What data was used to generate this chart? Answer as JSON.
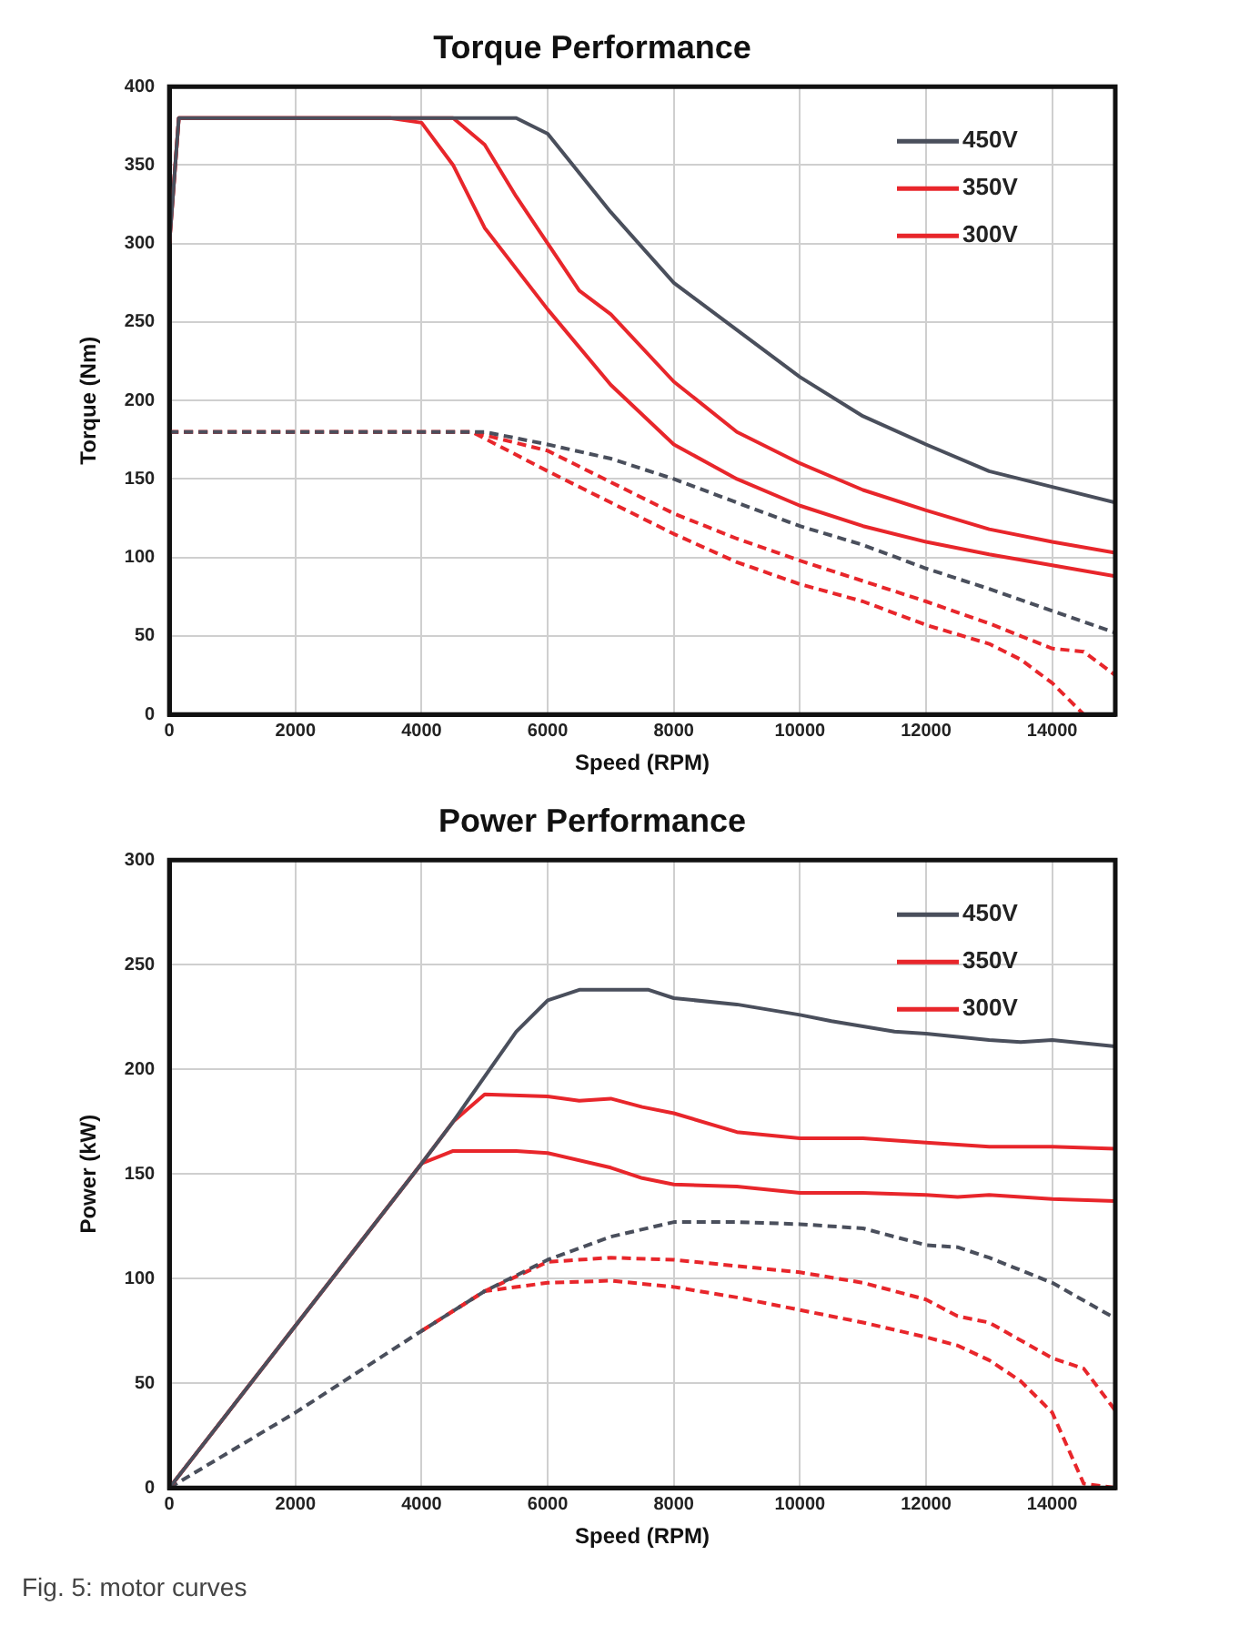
{
  "chart_data": [
    {
      "type": "line",
      "title": "Torque Performance",
      "xlabel": "Speed (RPM)",
      "ylabel": "Torque (Nm)",
      "xlim": [
        0,
        15000
      ],
      "xticks": [
        0,
        2000,
        4000,
        6000,
        8000,
        10000,
        12000,
        14000
      ],
      "ylim": [
        0,
        400
      ],
      "yticks": [
        0,
        50,
        100,
        150,
        200,
        250,
        300,
        350,
        400
      ],
      "grid": true,
      "legend": "top right",
      "series": [
        {
          "name": "450V",
          "color": "#4a4f5c",
          "line_style": "solid",
          "x": [
            0,
            150,
            5500,
            6000,
            7000,
            8000,
            9000,
            10000,
            11000,
            12000,
            13000,
            14000,
            15000
          ],
          "values": [
            300,
            380,
            380,
            370,
            320,
            275,
            245,
            215,
            190,
            172,
            155,
            145,
            135
          ]
        },
        {
          "name": "350V",
          "color": "#e8262b",
          "line_style": "solid",
          "x": [
            0,
            150,
            4500,
            5000,
            5500,
            6000,
            6500,
            7000,
            8000,
            9000,
            10000,
            11000,
            12000,
            13000,
            14000,
            15000
          ],
          "values": [
            300,
            380,
            380,
            363,
            330,
            300,
            270,
            255,
            212,
            180,
            160,
            143,
            130,
            118,
            110,
            103
          ]
        },
        {
          "name": "300V",
          "color": "#e8262b",
          "line_style": "solid",
          "x": [
            0,
            150,
            3500,
            4000,
            4500,
            5000,
            6000,
            7000,
            8000,
            9000,
            10000,
            11000,
            12000,
            13000,
            14000,
            15000
          ],
          "values": [
            300,
            380,
            380,
            377,
            350,
            310,
            258,
            210,
            172,
            150,
            133,
            120,
            110,
            102,
            95,
            88
          ]
        },
        {
          "color": "#4a4f5c",
          "line_style": "dashed",
          "x": [
            0,
            5000,
            6000,
            7000,
            8000,
            9000,
            10000,
            11000,
            12000,
            13000,
            14000,
            15000
          ],
          "values": [
            180,
            180,
            172,
            163,
            150,
            135,
            120,
            108,
            93,
            80,
            66,
            52
          ]
        },
        {
          "color": "#e8262b",
          "line_style": "dashed",
          "x": [
            0,
            4800,
            6000,
            7000,
            8000,
            9000,
            10000,
            11000,
            12000,
            13000,
            14000,
            14500,
            15000
          ],
          "values": [
            180,
            180,
            168,
            148,
            128,
            112,
            98,
            85,
            72,
            58,
            42,
            40,
            25
          ]
        },
        {
          "color": "#e8262b",
          "line_style": "dashed",
          "x": [
            0,
            4800,
            6000,
            7000,
            8000,
            9000,
            10000,
            11000,
            12000,
            13000,
            13500,
            14000,
            14500
          ],
          "values": [
            180,
            180,
            155,
            135,
            115,
            97,
            83,
            72,
            57,
            45,
            35,
            20,
            0
          ]
        }
      ]
    },
    {
      "type": "line",
      "title": "Power Performance",
      "xlabel": "Speed (RPM)",
      "ylabel": "Power (kW)",
      "xlim": [
        0,
        15000
      ],
      "xticks": [
        0,
        2000,
        4000,
        6000,
        8000,
        10000,
        12000,
        14000
      ],
      "ylim": [
        0,
        300
      ],
      "yticks": [
        0,
        50,
        100,
        150,
        200,
        250,
        300
      ],
      "grid": true,
      "legend": "top right",
      "annotations": [
        "Fig. 5: motor curves"
      ],
      "series": [
        {
          "name": "450V",
          "color": "#4a4f5c",
          "line_style": "solid",
          "x": [
            0,
            4000,
            4500,
            5500,
            6000,
            6500,
            7600,
            8000,
            9000,
            10000,
            10500,
            11500,
            12000,
            13000,
            13500,
            14000,
            15000
          ],
          "values": [
            0,
            155,
            175,
            218,
            233,
            238,
            238,
            234,
            231,
            226,
            223,
            218,
            217,
            214,
            213,
            214,
            211
          ]
        },
        {
          "name": "350V",
          "color": "#e8262b",
          "line_style": "solid",
          "x": [
            0,
            4000,
            4500,
            5000,
            6000,
            6500,
            7000,
            7500,
            8000,
            9000,
            10000,
            11000,
            12000,
            13000,
            14000,
            15000
          ],
          "values": [
            0,
            155,
            175,
            188,
            187,
            185,
            186,
            182,
            179,
            170,
            167,
            167,
            165,
            163,
            163,
            162
          ]
        },
        {
          "name": "300V",
          "color": "#e8262b",
          "line_style": "solid",
          "x": [
            0,
            4000,
            4500,
            5500,
            6000,
            7000,
            7500,
            8000,
            9000,
            10000,
            11000,
            12000,
            12500,
            13000,
            14000,
            15000
          ],
          "values": [
            0,
            155,
            161,
            161,
            160,
            153,
            148,
            145,
            144,
            141,
            141,
            140,
            139,
            140,
            138,
            137
          ]
        },
        {
          "color": "#4a4f5c",
          "line_style": "dashed",
          "x": [
            0,
            2000,
            4000,
            5000,
            6000,
            7000,
            8000,
            9000,
            10000,
            11000,
            12000,
            12500,
            13000,
            14000,
            15000
          ],
          "values": [
            0,
            36,
            75,
            94,
            109,
            120,
            127,
            127,
            126,
            124,
            116,
            115,
            110,
            98,
            81
          ]
        },
        {
          "color": "#e8262b",
          "line_style": "dashed",
          "x": [
            4000,
            5000,
            6000,
            7000,
            8000,
            9000,
            10000,
            11000,
            11500,
            12000,
            12500,
            13000,
            14000,
            14500,
            15000
          ],
          "values": [
            75,
            94,
            108,
            110,
            109,
            106,
            103,
            98,
            94,
            90,
            82,
            79,
            62,
            57,
            37
          ]
        },
        {
          "color": "#e8262b",
          "line_style": "dashed",
          "x": [
            4000,
            5000,
            6000,
            7000,
            8000,
            9000,
            10000,
            11000,
            12000,
            12500,
            13000,
            13500,
            14000,
            14500,
            15000
          ],
          "values": [
            75,
            94,
            98,
            99,
            96,
            91,
            85,
            79,
            72,
            68,
            61,
            51,
            36,
            2,
            0
          ]
        }
      ]
    }
  ]
}
